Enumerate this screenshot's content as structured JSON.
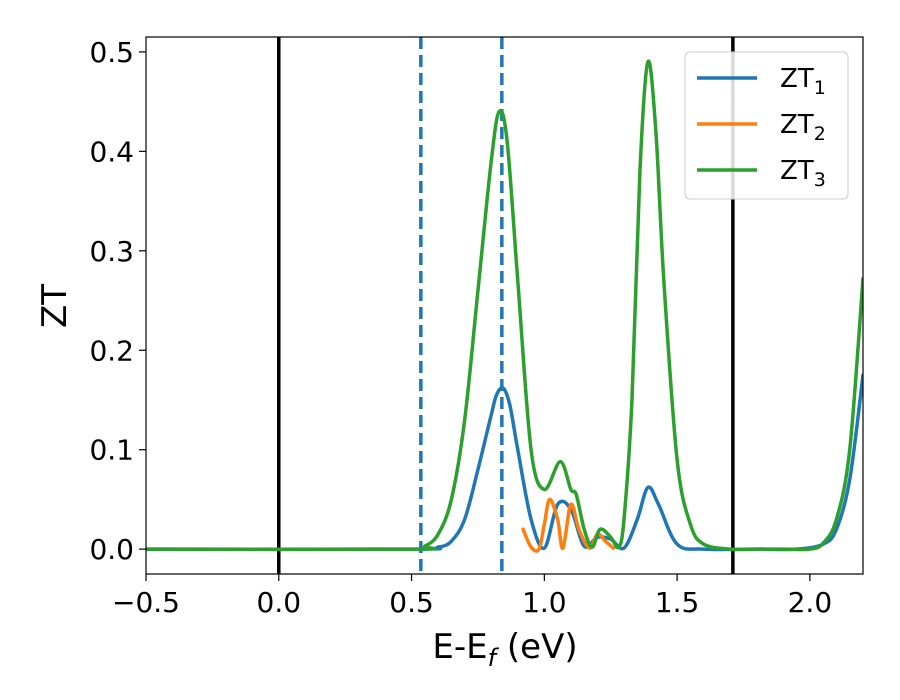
{
  "chart_data": {
    "type": "line",
    "xlabel": {
      "main": "E-E",
      "sub": "f",
      "unit": " (eV)"
    },
    "ylabel": "ZT",
    "xlim": [
      -0.5,
      2.2
    ],
    "ylim": [
      -0.025,
      0.515
    ],
    "x_ticks": [
      -0.5,
      0.0,
      0.5,
      1.0,
      1.5,
      2.0
    ],
    "x_tick_labels": [
      "−0.5",
      "0.0",
      "0.5",
      "1.0",
      "1.5",
      "2.0"
    ],
    "y_ticks": [
      0.0,
      0.1,
      0.2,
      0.3,
      0.4,
      0.5
    ],
    "y_tick_labels": [
      "0.0",
      "0.1",
      "0.2",
      "0.3",
      "0.4",
      "0.5"
    ],
    "grid": false,
    "legend_position": "top-right",
    "vlines": [
      {
        "x": 0.0,
        "style": "solid",
        "color": "#000000"
      },
      {
        "x": 1.71,
        "style": "solid",
        "color": "#000000"
      },
      {
        "x": 0.535,
        "style": "dashed",
        "color": "#1f77b4"
      },
      {
        "x": 0.84,
        "style": "dashed",
        "color": "#1f77b4"
      }
    ],
    "series": [
      {
        "name": "ZT",
        "sub": "1",
        "color": "#1f77b4",
        "x": [
          -0.5,
          0.5,
          0.6,
          0.65,
          0.7,
          0.75,
          0.8,
          0.82,
          0.845,
          0.87,
          0.9,
          0.95,
          1.0,
          1.05,
          1.1,
          1.15,
          1.2,
          1.25,
          1.3,
          1.35,
          1.39,
          1.43,
          1.5,
          1.6,
          1.8,
          1.95,
          2.05,
          2.1,
          2.15,
          2.2
        ],
        "y": [
          0.0,
          0.0,
          0.002,
          0.008,
          0.03,
          0.08,
          0.135,
          0.155,
          0.162,
          0.145,
          0.1,
          0.03,
          0.001,
          0.045,
          0.04,
          0.003,
          0.012,
          0.01,
          0.001,
          0.03,
          0.062,
          0.045,
          0.005,
          0.0,
          0.0,
          0.0,
          0.005,
          0.02,
          0.07,
          0.175
        ]
      },
      {
        "name": "ZT",
        "sub": "2",
        "color": "#ff7f0e",
        "x": [
          0.92,
          0.95,
          0.98,
          1.0,
          1.02,
          1.05,
          1.07,
          1.1,
          1.13,
          1.17,
          1.2,
          1.23,
          1.26
        ],
        "y": [
          0.02,
          0.002,
          0.0,
          0.025,
          0.05,
          0.03,
          0.001,
          0.045,
          0.02,
          0.001,
          0.015,
          0.008,
          0.001
        ]
      },
      {
        "name": "ZT",
        "sub": "3",
        "color": "#2ca02c",
        "x": [
          -0.5,
          0.5,
          0.55,
          0.6,
          0.65,
          0.7,
          0.75,
          0.8,
          0.83,
          0.86,
          0.9,
          0.95,
          1.0,
          1.06,
          1.1,
          1.12,
          1.15,
          1.18,
          1.21,
          1.25,
          1.28,
          1.3,
          1.33,
          1.36,
          1.39,
          1.42,
          1.45,
          1.5,
          1.55,
          1.6,
          1.7,
          1.8,
          1.9,
          2.0,
          2.05,
          2.1,
          2.15,
          2.2
        ],
        "y": [
          0.0,
          0.0,
          0.003,
          0.015,
          0.05,
          0.13,
          0.26,
          0.39,
          0.44,
          0.41,
          0.27,
          0.1,
          0.06,
          0.088,
          0.06,
          0.055,
          0.02,
          0.002,
          0.02,
          0.012,
          0.002,
          0.03,
          0.15,
          0.38,
          0.49,
          0.42,
          0.27,
          0.09,
          0.025,
          0.005,
          0.0,
          0.0,
          0.0,
          0.0,
          0.006,
          0.03,
          0.1,
          0.272
        ]
      }
    ]
  }
}
